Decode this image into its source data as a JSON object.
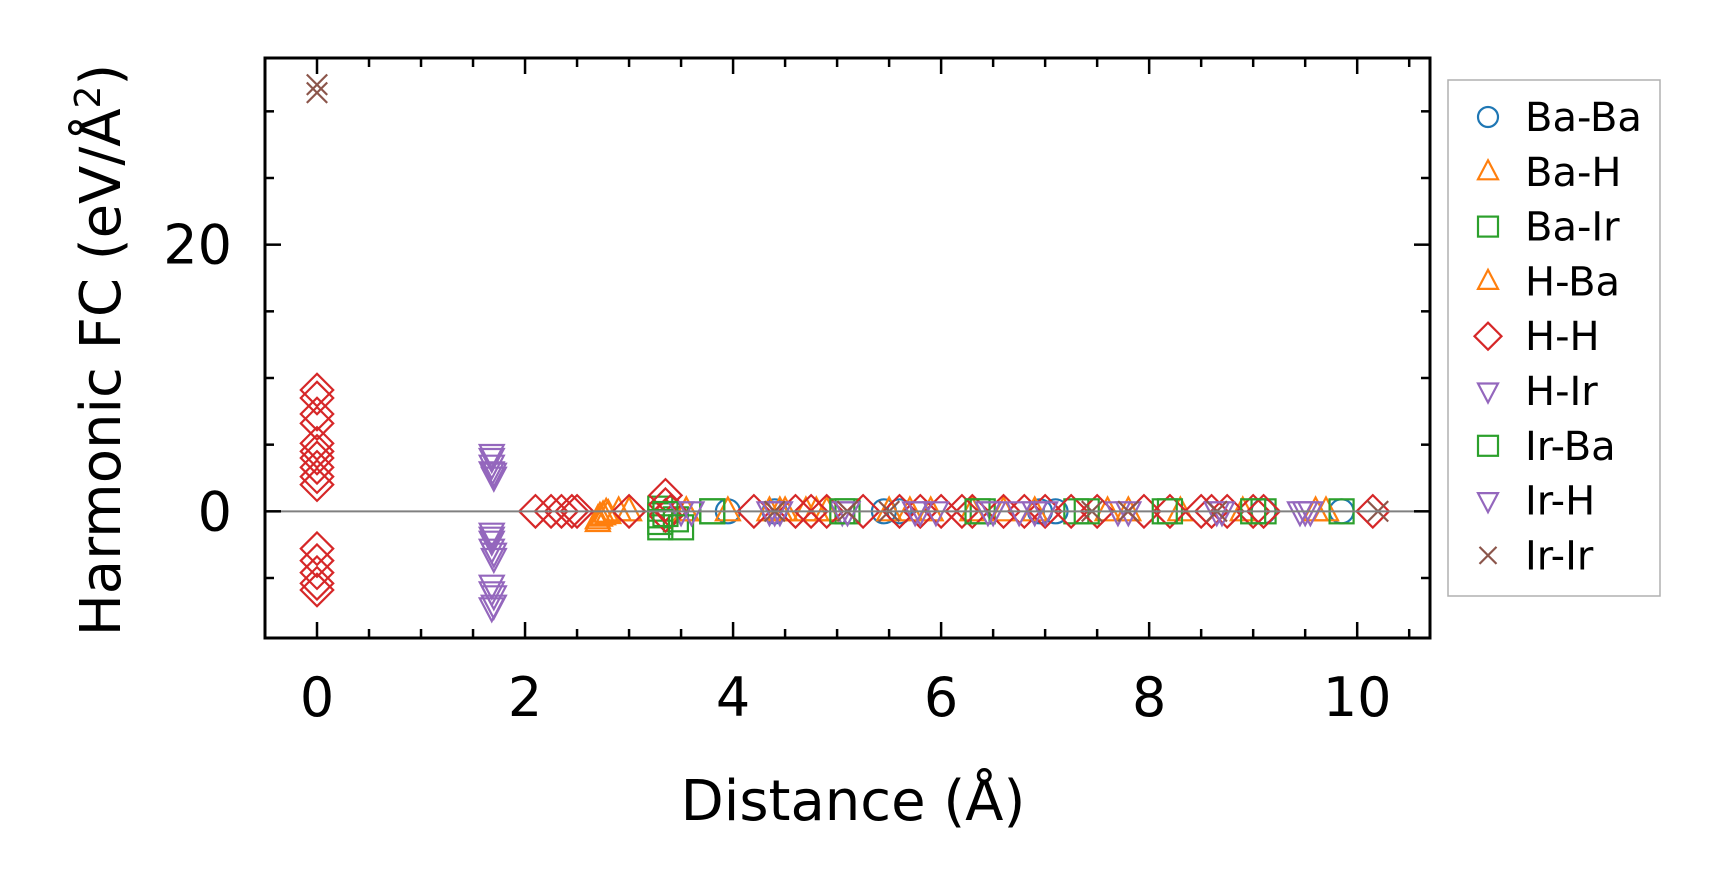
{
  "chart_data": {
    "type": "scatter",
    "xlabel": "Distance (Å)",
    "ylabel": "Harmonic FC (eV/Å",
    "ylabel_superscript": "2",
    "ylabel_close": ")",
    "xlim": [
      -0.5,
      10.7
    ],
    "ylim": [
      -9.5,
      34.0
    ],
    "x_ticks": [
      0,
      2,
      4,
      6,
      8,
      10
    ],
    "x_tick_labels": [
      "0",
      "2",
      "4",
      "6",
      "8",
      "10"
    ],
    "y_ticks": [
      0,
      20
    ],
    "y_tick_labels": [
      "0",
      "20"
    ],
    "zero_line": true,
    "grid": false,
    "legend_position": "outside-right",
    "series": [
      {
        "name": "Ba-Ba",
        "marker": "circle",
        "color": "#1f77b4",
        "points": [
          [
            3.95,
            0.0
          ],
          [
            4.4,
            0.0
          ],
          [
            5.45,
            0.0
          ],
          [
            5.6,
            0.0
          ],
          [
            6.95,
            0.0
          ],
          [
            7.1,
            0.0
          ],
          [
            9.1,
            0.0
          ],
          [
            9.85,
            0.0
          ]
        ]
      },
      {
        "name": "Ba-H",
        "marker": "triangle-up",
        "color": "#ff7f0e",
        "points": [
          [
            2.7,
            -0.6
          ],
          [
            2.75,
            -0.3
          ],
          [
            2.8,
            -0.2
          ],
          [
            2.9,
            0.0
          ],
          [
            3.0,
            0.0
          ],
          [
            3.55,
            0.0
          ],
          [
            3.95,
            0.0
          ],
          [
            4.35,
            0.0
          ],
          [
            4.5,
            0.0
          ],
          [
            4.7,
            0.0
          ],
          [
            4.9,
            0.0
          ],
          [
            5.5,
            0.0
          ],
          [
            5.9,
            0.0
          ],
          [
            6.3,
            0.0
          ],
          [
            6.9,
            0.0
          ],
          [
            7.6,
            0.0
          ],
          [
            8.3,
            0.0
          ],
          [
            8.9,
            0.0
          ],
          [
            9.7,
            0.0
          ]
        ]
      },
      {
        "name": "Ba-Ir",
        "marker": "square",
        "color": "#2ca02c",
        "points": [
          [
            3.3,
            -0.3
          ],
          [
            3.3,
            -1.2
          ],
          [
            3.3,
            0.2
          ],
          [
            3.45,
            -0.6
          ],
          [
            3.8,
            0.0
          ],
          [
            5.1,
            0.0
          ],
          [
            6.4,
            0.0
          ],
          [
            7.3,
            0.0
          ],
          [
            8.2,
            0.0
          ],
          [
            9.1,
            0.0
          ]
        ]
      },
      {
        "name": "H-Ba",
        "marker": "triangle-up",
        "color": "#ff7f0e",
        "points": [
          [
            2.7,
            -0.8
          ],
          [
            2.72,
            -0.4
          ],
          [
            2.78,
            -0.1
          ],
          [
            3.55,
            0.0
          ],
          [
            4.45,
            0.0
          ],
          [
            4.8,
            0.0
          ],
          [
            5.7,
            0.0
          ],
          [
            6.6,
            0.0
          ],
          [
            7.8,
            0.0
          ],
          [
            9.6,
            0.0
          ]
        ]
      },
      {
        "name": "H-H",
        "marker": "diamond",
        "color": "#d62728",
        "points": [
          [
            0,
            9.1
          ],
          [
            0,
            8.5
          ],
          [
            0,
            7.3
          ],
          [
            0,
            6.6
          ],
          [
            0,
            5.1
          ],
          [
            0,
            4.5
          ],
          [
            0,
            4.0
          ],
          [
            0,
            3.3
          ],
          [
            0,
            2.6
          ],
          [
            0,
            2.0
          ],
          [
            0,
            -2.8
          ],
          [
            0,
            -3.7
          ],
          [
            0,
            -4.6
          ],
          [
            0,
            -5.4
          ],
          [
            0,
            -5.9
          ],
          [
            2.1,
            0.0
          ],
          [
            2.25,
            0.0
          ],
          [
            2.35,
            0.0
          ],
          [
            2.45,
            0.0
          ],
          [
            2.5,
            0.0
          ],
          [
            3.0,
            0.0
          ],
          [
            3.35,
            1.2
          ],
          [
            3.35,
            0.5
          ],
          [
            3.35,
            -0.3
          ],
          [
            3.4,
            0.0
          ],
          [
            4.2,
            0.0
          ],
          [
            4.6,
            0.0
          ],
          [
            4.75,
            0.0
          ],
          [
            4.9,
            0.0
          ],
          [
            5.25,
            0.0
          ],
          [
            5.6,
            0.0
          ],
          [
            5.8,
            0.0
          ],
          [
            6.0,
            0.0
          ],
          [
            6.2,
            0.0
          ],
          [
            6.3,
            0.0
          ],
          [
            6.6,
            0.0
          ],
          [
            6.8,
            0.0
          ],
          [
            7.0,
            0.0
          ],
          [
            7.25,
            0.0
          ],
          [
            7.5,
            0.0
          ],
          [
            7.95,
            0.0
          ],
          [
            8.2,
            0.0
          ],
          [
            8.5,
            0.0
          ],
          [
            8.6,
            0.0
          ],
          [
            8.75,
            0.0
          ],
          [
            9.0,
            0.0
          ],
          [
            9.1,
            0.0
          ],
          [
            10.15,
            0.0
          ]
        ]
      },
      {
        "name": "H-Ir",
        "marker": "triangle-down",
        "color": "#9467bd",
        "points": [
          [
            1.68,
            4.0
          ],
          [
            1.68,
            3.5
          ],
          [
            1.68,
            3.0
          ],
          [
            1.7,
            2.6
          ],
          [
            1.68,
            -1.6
          ],
          [
            1.68,
            -2.2
          ],
          [
            1.68,
            -2.8
          ],
          [
            1.7,
            -3.5
          ],
          [
            1.68,
            -5.5
          ],
          [
            1.7,
            -6.3
          ],
          [
            1.68,
            -7.2
          ],
          [
            3.5,
            0.0
          ],
          [
            4.35,
            0.0
          ],
          [
            4.45,
            0.0
          ],
          [
            5.05,
            0.0
          ],
          [
            5.75,
            0.0
          ],
          [
            5.95,
            0.0
          ],
          [
            6.5,
            0.0
          ],
          [
            6.75,
            0.0
          ],
          [
            6.9,
            0.0
          ],
          [
            7.7,
            0.0
          ],
          [
            8.65,
            0.0
          ],
          [
            9.45,
            0.0
          ],
          [
            9.55,
            0.0
          ]
        ]
      },
      {
        "name": "Ir-Ba",
        "marker": "square",
        "color": "#2ca02c",
        "points": [
          [
            3.3,
            -0.8
          ],
          [
            3.35,
            -0.2
          ],
          [
            3.5,
            -1.2
          ],
          [
            3.8,
            0.0
          ],
          [
            5.05,
            0.0
          ],
          [
            6.35,
            0.0
          ],
          [
            7.4,
            0.0
          ],
          [
            8.15,
            0.0
          ],
          [
            9.0,
            0.0
          ],
          [
            9.85,
            0.0
          ]
        ]
      },
      {
        "name": "Ir-H",
        "marker": "triangle-down",
        "color": "#9467bd",
        "points": [
          [
            1.68,
            4.3
          ],
          [
            1.7,
            2.9
          ],
          [
            1.68,
            -1.9
          ],
          [
            1.7,
            -3.1
          ],
          [
            1.68,
            -6.0
          ],
          [
            1.7,
            -7.0
          ],
          [
            3.6,
            0.0
          ],
          [
            4.4,
            0.0
          ],
          [
            5.1,
            0.0
          ],
          [
            5.8,
            0.0
          ],
          [
            6.45,
            0.0
          ],
          [
            7.0,
            0.0
          ],
          [
            7.8,
            0.0
          ],
          [
            8.7,
            0.0
          ],
          [
            9.5,
            0.0
          ]
        ]
      },
      {
        "name": "Ir-Ir",
        "marker": "x",
        "color": "#8c564b",
        "points": [
          [
            0,
            32.0
          ],
          [
            0,
            31.4
          ],
          [
            4.4,
            0.0
          ],
          [
            5.1,
            0.0
          ],
          [
            5.5,
            0.0
          ],
          [
            7.45,
            0.0
          ],
          [
            7.8,
            0.0
          ],
          [
            8.65,
            0.0
          ],
          [
            10.2,
            0.0
          ]
        ]
      }
    ]
  }
}
